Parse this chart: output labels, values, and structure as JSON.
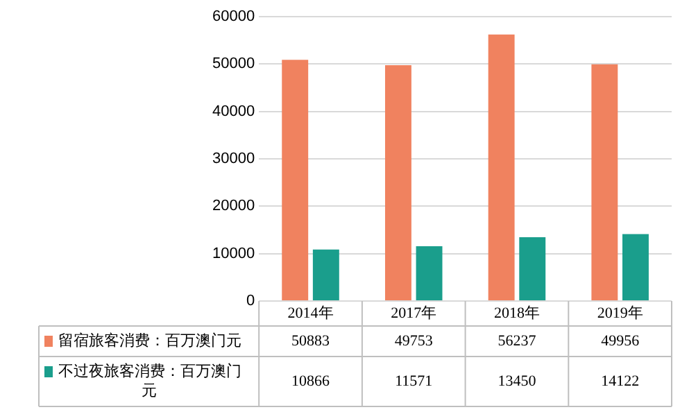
{
  "chart_data": {
    "type": "bar",
    "categories": [
      "2014年",
      "2017年",
      "2018年",
      "2019年"
    ],
    "series": [
      {
        "name": "留宿旅客消费：百万澳门元",
        "color": "#f0825f",
        "values": [
          50883,
          49753,
          56237,
          49956
        ]
      },
      {
        "name": "不过夜旅客消费：百万澳门元",
        "color": "#1a9e8c",
        "values": [
          10866,
          11571,
          13450,
          14122
        ]
      }
    ],
    "ylim": [
      0,
      60000
    ],
    "yticks": [
      0,
      10000,
      20000,
      30000,
      40000,
      50000,
      60000
    ],
    "grid": "y",
    "data_labels": true,
    "legend": "bottom"
  }
}
